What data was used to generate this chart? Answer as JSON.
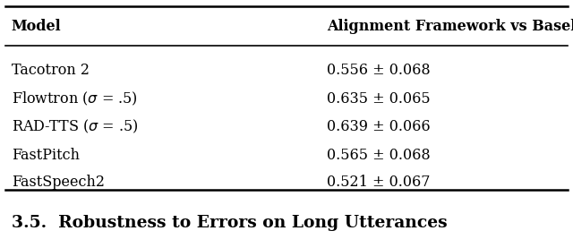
{
  "col1_header": "Model",
  "col2_header": "Alignment Framework vs Baseline",
  "rows": [
    [
      "Tacotron 2",
      "0.556 ± 0.068"
    ],
    [
      "Flowtron ($\\sigma$ = .5)",
      "0.635 ± 0.065"
    ],
    [
      "RAD-TTS ($\\sigma$ = .5)",
      "0.639 ± 0.066"
    ],
    [
      "FastPitch",
      "0.565 ± 0.068"
    ],
    [
      "FastSpeech2",
      "0.521 ± 0.067"
    ]
  ],
  "section_title": "3.5.  Robustness to Errors on Long Utterances",
  "bg_color": "#ffffff",
  "text_color": "#000000",
  "header_fontsize": 11.5,
  "row_fontsize": 11.5,
  "section_fontsize": 13.5
}
